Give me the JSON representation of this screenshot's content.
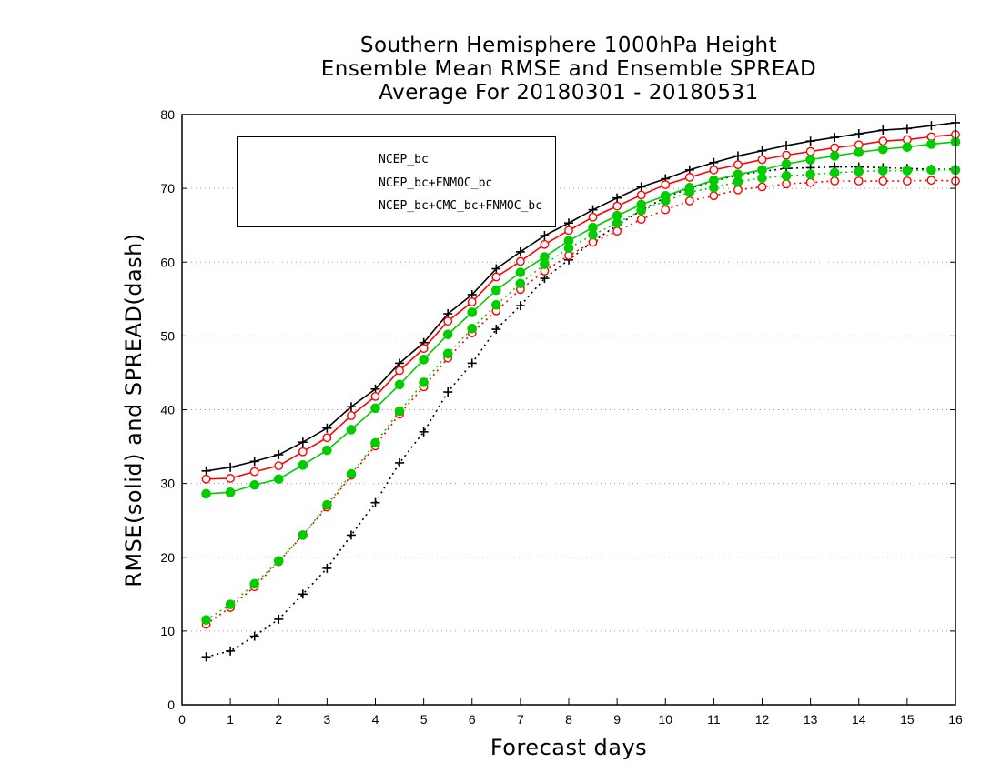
{
  "chart_data": {
    "type": "line",
    "title": [
      "Southern Hemisphere 1000hPa Height",
      "Ensemble Mean RMSE and Ensemble SPREAD",
      "Average For 20180301 - 20180531"
    ],
    "xlabel": "Forecast days",
    "ylabel": "RMSE(solid) and SPREAD(dash)",
    "xlim": [
      0,
      16
    ],
    "ylim": [
      0,
      80
    ],
    "xticks": [
      "0",
      "1",
      "2",
      "3",
      "4",
      "5",
      "6",
      "7",
      "8",
      "9",
      "10",
      "11",
      "12",
      "13",
      "14",
      "15",
      "16"
    ],
    "yticks": [
      "0",
      "10",
      "20",
      "30",
      "40",
      "50",
      "60",
      "70",
      "80"
    ],
    "grid": "horizontal dotted",
    "legend_position": "top-left",
    "x": [
      0.5,
      1,
      1.5,
      2,
      2.5,
      3,
      3.5,
      4,
      4.5,
      5,
      5.5,
      6,
      6.5,
      7,
      7.5,
      8,
      8.5,
      9,
      9.5,
      10,
      10.5,
      11,
      11.5,
      12,
      12.5,
      13,
      13.5,
      14,
      14.5,
      15,
      15.5,
      16
    ],
    "series": [
      {
        "name": "NCEP_bc",
        "color": "#000000",
        "marker": "plus",
        "rmse": [
          31.7,
          32.2,
          33.0,
          33.9,
          35.6,
          37.5,
          40.4,
          42.8,
          46.3,
          49.1,
          53.0,
          55.6,
          59.1,
          61.4,
          63.6,
          65.3,
          67.1,
          68.7,
          70.2,
          71.3,
          72.5,
          73.5,
          74.4,
          75.1,
          75.8,
          76.4,
          76.9,
          77.4,
          77.9,
          78.1,
          78.5,
          78.9
        ],
        "spread": [
          6.5,
          7.3,
          9.3,
          11.6,
          15.0,
          18.5,
          23.0,
          27.4,
          32.8,
          37.0,
          42.4,
          46.3,
          50.9,
          54.1,
          57.8,
          60.3,
          62.8,
          65.0,
          67.0,
          68.8,
          70.0,
          71.0,
          71.8,
          72.3,
          72.7,
          72.8,
          72.9,
          72.9,
          72.8,
          72.7,
          72.6,
          72.6
        ]
      },
      {
        "name": "NCEP_bc+FNMOC_bc",
        "color": "#ff0000",
        "marker": "open-circle",
        "rmse": [
          30.6,
          30.7,
          31.6,
          32.4,
          34.3,
          36.2,
          39.2,
          41.8,
          45.3,
          48.3,
          52.0,
          54.6,
          58.0,
          60.1,
          62.4,
          64.3,
          66.1,
          67.6,
          69.1,
          70.5,
          71.5,
          72.5,
          73.2,
          73.9,
          74.5,
          75.0,
          75.5,
          75.9,
          76.4,
          76.6,
          77.0,
          77.3
        ],
        "spread": [
          10.9,
          13.2,
          16.0,
          19.4,
          23.0,
          26.8,
          31.1,
          35.1,
          39.4,
          43.1,
          47.0,
          50.4,
          53.4,
          56.3,
          58.8,
          60.9,
          62.7,
          64.2,
          65.8,
          67.1,
          68.3,
          69.0,
          69.8,
          70.2,
          70.6,
          70.8,
          71.0,
          71.0,
          71.0,
          71.0,
          71.1,
          71.0
        ]
      },
      {
        "name": "NCEP_bc+CMC_bc+FNMOC_bc",
        "color": "#00cc00",
        "marker": "filled-circle",
        "rmse": [
          28.6,
          28.8,
          29.8,
          30.6,
          32.5,
          34.5,
          37.3,
          40.2,
          43.4,
          46.8,
          50.2,
          53.2,
          56.2,
          58.6,
          60.7,
          62.9,
          64.7,
          66.3,
          67.8,
          69.0,
          70.1,
          71.1,
          71.9,
          72.5,
          73.3,
          73.9,
          74.4,
          74.9,
          75.3,
          75.6,
          76.0,
          76.3
        ],
        "spread": [
          11.5,
          13.6,
          16.4,
          19.5,
          23.0,
          27.1,
          31.3,
          35.5,
          39.8,
          43.7,
          47.6,
          51.0,
          54.2,
          57.1,
          59.7,
          61.9,
          63.7,
          65.3,
          67.0,
          68.3,
          69.5,
          70.1,
          70.9,
          71.4,
          71.7,
          71.9,
          72.1,
          72.3,
          72.4,
          72.4,
          72.5,
          72.5
        ]
      }
    ]
  }
}
